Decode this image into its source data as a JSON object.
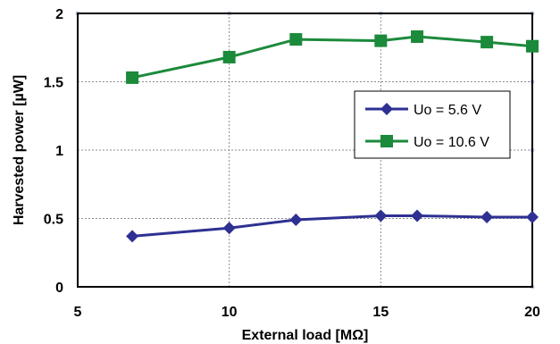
{
  "chart_data": {
    "type": "line",
    "title": "",
    "xlabel": "External load [MΩ]",
    "ylabel": "Harvested power [µW]",
    "xlim": [
      5,
      20
    ],
    "ylim": [
      0,
      2
    ],
    "x_ticks": [
      "5",
      "10",
      "15",
      "20"
    ],
    "y_ticks": [
      "0",
      "0.5",
      "1",
      "1.5",
      "2"
    ],
    "grid": true,
    "legend_position": "right-middle",
    "series": [
      {
        "name": "Uo = 5.6 V",
        "color": "#2e3192",
        "marker": "diamond",
        "x": [
          6.8,
          10,
          12.2,
          15,
          16.2,
          18.5,
          20
        ],
        "y": [
          0.37,
          0.43,
          0.49,
          0.52,
          0.52,
          0.51,
          0.51
        ]
      },
      {
        "name": "Uo = 10.6 V",
        "color": "#1b8a3b",
        "marker": "square",
        "x": [
          6.8,
          10,
          12.2,
          15,
          16.2,
          18.5,
          20
        ],
        "y": [
          1.53,
          1.68,
          1.81,
          1.8,
          1.83,
          1.79,
          1.76
        ]
      }
    ]
  }
}
